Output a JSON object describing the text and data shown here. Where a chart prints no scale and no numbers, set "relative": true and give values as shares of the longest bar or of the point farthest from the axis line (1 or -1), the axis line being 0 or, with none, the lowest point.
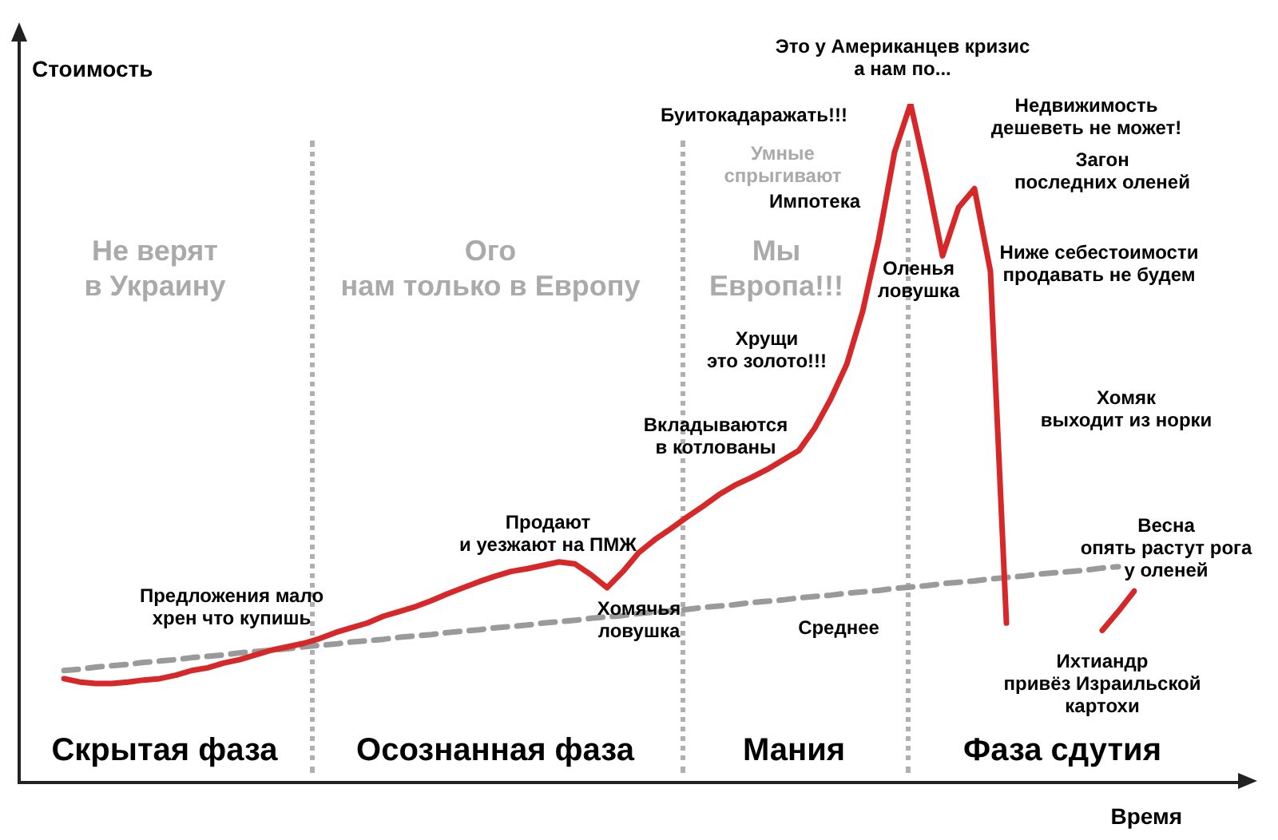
{
  "chart_data": {
    "type": "line",
    "relative": true,
    "xlabel": "Время",
    "ylabel": "Стоимость",
    "marker": "none",
    "categories": [
      null,
      null,
      null,
      null,
      null,
      null,
      null,
      null,
      null,
      null,
      null,
      null,
      null,
      null,
      null,
      null,
      null,
      null,
      null,
      null,
      null,
      null,
      null,
      null,
      null,
      null,
      null,
      null,
      null,
      null,
      null,
      null,
      null,
      null,
      null,
      null,
      null,
      null,
      null,
      null,
      null,
      null,
      null,
      null,
      null,
      null,
      null,
      null,
      null,
      null,
      null,
      null,
      null,
      null,
      null,
      null,
      null,
      null,
      null,
      null,
      null,
      null,
      null,
      null,
      null,
      null,
      null,
      null
    ],
    "series": [
      {
        "color": "#d62828",
        "line_style": "solid",
        "values": [
          0.153,
          0.148,
          0.146,
          0.146,
          0.148,
          0.151,
          0.153,
          0.158,
          0.165,
          0.169,
          0.176,
          0.181,
          0.188,
          0.195,
          0.2,
          0.205,
          0.212,
          0.221,
          0.228,
          0.235,
          0.245,
          0.252,
          0.259,
          0.268,
          0.278,
          0.287,
          0.296,
          0.304,
          0.311,
          0.315,
          0.32,
          0.325,
          0.322,
          0.306,
          0.287,
          0.311,
          0.339,
          0.358,
          0.374,
          0.391,
          0.407,
          0.424,
          0.438,
          0.449,
          0.461,
          0.475,
          0.489,
          0.522,
          0.565,
          0.616,
          0.694,
          0.8,
          0.929,
          1,
          0.894,
          0.776,
          0.847,
          0.875,
          0.753,
          0.235,
          null,
          null,
          null,
          null,
          null,
          0.224,
          0.252,
          0.282
        ]
      },
      {
        "name": "Среднее",
        "color": "#9a9a9a",
        "line_style": "dashed",
        "values": [
          0.165,
          0.167,
          0.17,
          0.172,
          0.174,
          0.177,
          0.179,
          0.181,
          0.184,
          0.186,
          0.188,
          0.191,
          0.193,
          0.195,
          0.197,
          0.2,
          0.202,
          0.204,
          0.207,
          0.209,
          0.211,
          0.214,
          0.216,
          0.218,
          0.221,
          0.223,
          0.225,
          0.228,
          0.23,
          0.232,
          0.235,
          0.237,
          0.239,
          0.242,
          0.244,
          0.246,
          0.249,
          0.251,
          0.253,
          0.255,
          0.258,
          0.26,
          0.262,
          0.265,
          0.267,
          0.269,
          0.272,
          0.274,
          0.276,
          0.279,
          0.281,
          0.283,
          0.286,
          0.288,
          0.29,
          0.293,
          0.295,
          0.297,
          0.3,
          0.302,
          0.304,
          0.307,
          0.309,
          0.311,
          0.313,
          0.316,
          0.318,
          null
        ]
      }
    ],
    "annotations": [
      "Не верят\nв Украину",
      "Ого\nнам только в Европу",
      "Мы\nЕвропа!!!",
      "Умные\nспрыгивают",
      "Это у Американцев кризис\nа нам по...",
      "Недвижимость\nдешеветь не может!",
      "Буитокадаражать!!!",
      "Импотека",
      "Загон\nпоследних оленей",
      "Ниже себестоимости\nпродавать не будем",
      "Оленья\nловушка",
      "Хрущи\nэто золото!!!",
      "Вкладываются\nв котлованы",
      "Хомяк\nвыходит из норки",
      "Продают\nи уезжают на ПМЖ",
      "Весна\nопять растут рога\nу оленей",
      "Предложения мало\nхрен что купишь",
      "Хомячья\nловушка",
      "Ихтиандр\nпривёз Израильской\nкартохи",
      "Скрытая фаза",
      "Осознанная фаза",
      "Мания",
      "Фаза сдутия"
    ]
  }
}
